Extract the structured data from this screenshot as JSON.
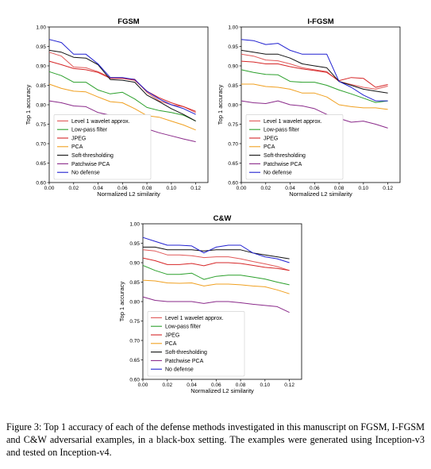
{
  "chart_data": [
    {
      "type": "line",
      "title": "FGSM",
      "xlabel": "Normalized L2 similarity",
      "ylabel": "Top 1 accuracy",
      "xlim": [
        0,
        0.13
      ],
      "ylim": [
        0.6,
        1.0
      ],
      "xticks": [
        "0.00",
        "0.02",
        "0.04",
        "0.06",
        "0.08",
        "0.10",
        "0.12"
      ],
      "yticks": [
        "0.60",
        "0.65",
        "0.70",
        "0.75",
        "0.80",
        "0.85",
        "0.90",
        "0.95",
        "1.00"
      ],
      "legend_position": "bottom-left",
      "series": [
        {
          "name": "Level 1 wavelet approx.",
          "color": "#e05858",
          "x": [
            0,
            0.01,
            0.02,
            0.03,
            0.04,
            0.05,
            0.06,
            0.07,
            0.08,
            0.09,
            0.1,
            0.11,
            0.12
          ],
          "y": [
            0.935,
            0.925,
            0.897,
            0.895,
            0.885,
            0.87,
            0.868,
            0.866,
            0.832,
            0.81,
            0.8,
            0.795,
            0.78
          ]
        },
        {
          "name": "Low-pass filter",
          "color": "#2ca02c",
          "x": [
            0,
            0.01,
            0.02,
            0.03,
            0.04,
            0.05,
            0.06,
            0.07,
            0.08,
            0.09,
            0.1,
            0.11,
            0.12
          ],
          "y": [
            0.885,
            0.875,
            0.858,
            0.858,
            0.838,
            0.828,
            0.832,
            0.815,
            0.793,
            0.785,
            0.78,
            0.773,
            0.758
          ]
        },
        {
          "name": "JPEG",
          "color": "#d62728",
          "x": [
            0,
            0.01,
            0.02,
            0.03,
            0.04,
            0.05,
            0.06,
            0.07,
            0.08,
            0.09,
            0.1,
            0.11,
            0.12
          ],
          "y": [
            0.912,
            0.903,
            0.893,
            0.89,
            0.883,
            0.868,
            0.868,
            0.863,
            0.835,
            0.818,
            0.805,
            0.795,
            0.783
          ]
        },
        {
          "name": "PCA",
          "color": "#f0a020",
          "x": [
            0,
            0.01,
            0.02,
            0.03,
            0.04,
            0.05,
            0.06,
            0.07,
            0.08,
            0.09,
            0.1,
            0.11,
            0.12
          ],
          "y": [
            0.853,
            0.842,
            0.835,
            0.833,
            0.82,
            0.808,
            0.805,
            0.79,
            0.772,
            0.768,
            0.758,
            0.748,
            0.735
          ]
        },
        {
          "name": "Soft-thresholding",
          "color": "#111111",
          "x": [
            0,
            0.01,
            0.02,
            0.03,
            0.04,
            0.05,
            0.06,
            0.07,
            0.08,
            0.09,
            0.1,
            0.11,
            0.12
          ],
          "y": [
            0.94,
            0.935,
            0.922,
            0.92,
            0.903,
            0.865,
            0.863,
            0.858,
            0.825,
            0.808,
            0.79,
            0.775,
            0.758
          ]
        },
        {
          "name": "Patchwise PCA",
          "color": "#8a2a8a",
          "x": [
            0,
            0.01,
            0.02,
            0.03,
            0.04,
            0.05,
            0.06,
            0.07,
            0.08,
            0.09,
            0.1,
            0.11,
            0.12
          ],
          "y": [
            0.81,
            0.805,
            0.797,
            0.795,
            0.78,
            0.773,
            0.77,
            0.763,
            0.738,
            0.728,
            0.72,
            0.712,
            0.705
          ]
        },
        {
          "name": "No defense",
          "color": "#2020d0",
          "x": [
            0,
            0.01,
            0.02,
            0.03,
            0.04,
            0.05,
            0.06,
            0.07,
            0.08,
            0.09,
            0.1,
            0.11,
            0.12
          ],
          "y": [
            0.968,
            0.96,
            0.93,
            0.93,
            0.905,
            0.87,
            0.87,
            0.865,
            0.835,
            0.815,
            0.8,
            0.79,
            0.775
          ]
        }
      ]
    },
    {
      "type": "line",
      "title": "I-FGSM",
      "xlabel": "Normalized L2 similarity",
      "ylabel": "Top 1 accuracy",
      "xlim": [
        0,
        0.13
      ],
      "ylim": [
        0.6,
        1.0
      ],
      "xticks": [
        "0.00",
        "0.02",
        "0.04",
        "0.06",
        "0.08",
        "0.10",
        "0.12"
      ],
      "yticks": [
        "0.60",
        "0.65",
        "0.70",
        "0.75",
        "0.80",
        "0.85",
        "0.90",
        "0.95",
        "1.00"
      ],
      "legend_position": "bottom-left",
      "series": [
        {
          "name": "Level 1 wavelet approx.",
          "color": "#e05858",
          "x": [
            0,
            0.01,
            0.02,
            0.03,
            0.04,
            0.05,
            0.06,
            0.07,
            0.08,
            0.09,
            0.1,
            0.11,
            0.12
          ],
          "y": [
            0.93,
            0.925,
            0.915,
            0.913,
            0.905,
            0.895,
            0.89,
            0.885,
            0.86,
            0.852,
            0.845,
            0.84,
            0.848
          ]
        },
        {
          "name": "Low-pass filter",
          "color": "#2ca02c",
          "x": [
            0,
            0.01,
            0.02,
            0.03,
            0.04,
            0.05,
            0.06,
            0.07,
            0.08,
            0.09,
            0.1,
            0.11,
            0.12
          ],
          "y": [
            0.89,
            0.883,
            0.878,
            0.877,
            0.86,
            0.858,
            0.858,
            0.85,
            0.838,
            0.828,
            0.817,
            0.806,
            0.81
          ]
        },
        {
          "name": "JPEG",
          "color": "#d62728",
          "x": [
            0,
            0.01,
            0.02,
            0.03,
            0.04,
            0.05,
            0.06,
            0.07,
            0.08,
            0.09,
            0.1,
            0.11,
            0.12
          ],
          "y": [
            0.912,
            0.91,
            0.905,
            0.905,
            0.898,
            0.892,
            0.888,
            0.883,
            0.862,
            0.87,
            0.868,
            0.845,
            0.852
          ]
        },
        {
          "name": "PCA",
          "color": "#f0a020",
          "x": [
            0,
            0.01,
            0.02,
            0.03,
            0.04,
            0.05,
            0.06,
            0.07,
            0.08,
            0.09,
            0.1,
            0.11,
            0.12
          ],
          "y": [
            0.853,
            0.853,
            0.847,
            0.845,
            0.84,
            0.83,
            0.83,
            0.82,
            0.8,
            0.795,
            0.792,
            0.792,
            0.788
          ]
        },
        {
          "name": "Soft-thresholding",
          "color": "#111111",
          "x": [
            0,
            0.01,
            0.02,
            0.03,
            0.04,
            0.05,
            0.06,
            0.07,
            0.08,
            0.09,
            0.1,
            0.11,
            0.12
          ],
          "y": [
            0.94,
            0.935,
            0.93,
            0.93,
            0.92,
            0.905,
            0.9,
            0.895,
            0.86,
            0.85,
            0.84,
            0.835,
            0.83
          ]
        },
        {
          "name": "Patchwise PCA",
          "color": "#8a2a8a",
          "x": [
            0,
            0.01,
            0.02,
            0.03,
            0.04,
            0.05,
            0.06,
            0.07,
            0.08,
            0.09,
            0.1,
            0.11,
            0.12
          ],
          "y": [
            0.81,
            0.805,
            0.803,
            0.81,
            0.8,
            0.797,
            0.79,
            0.775,
            0.765,
            0.755,
            0.758,
            0.75,
            0.74
          ]
        },
        {
          "name": "No defense",
          "color": "#2020d0",
          "x": [
            0,
            0.01,
            0.02,
            0.03,
            0.04,
            0.05,
            0.06,
            0.07,
            0.08,
            0.09,
            0.1,
            0.11,
            0.12
          ],
          "y": [
            0.968,
            0.965,
            0.955,
            0.958,
            0.94,
            0.93,
            0.93,
            0.93,
            0.86,
            0.845,
            0.825,
            0.81,
            0.81
          ]
        }
      ]
    },
    {
      "type": "line",
      "title": "C&W",
      "xlabel": "Normalized L2 similarity",
      "ylabel": "Top 1 accuracy",
      "xlim": [
        0,
        0.13
      ],
      "ylim": [
        0.6,
        1.0
      ],
      "xticks": [
        "0.00",
        "0.02",
        "0.04",
        "0.06",
        "0.08",
        "0.10",
        "0.12"
      ],
      "yticks": [
        "0.60",
        "0.65",
        "0.70",
        "0.75",
        "0.80",
        "0.85",
        "0.90",
        "0.95",
        "1.00"
      ],
      "legend_position": "bottom-left",
      "series": [
        {
          "name": "Level 1 wavelet approx.",
          "color": "#e05858",
          "x": [
            0,
            0.01,
            0.02,
            0.03,
            0.04,
            0.05,
            0.06,
            0.07,
            0.08,
            0.09,
            0.1,
            0.11,
            0.12
          ],
          "y": [
            0.933,
            0.93,
            0.92,
            0.92,
            0.918,
            0.913,
            0.915,
            0.915,
            0.91,
            0.903,
            0.897,
            0.89,
            0.88
          ]
        },
        {
          "name": "Low-pass filter",
          "color": "#2ca02c",
          "x": [
            0,
            0.01,
            0.02,
            0.03,
            0.04,
            0.05,
            0.06,
            0.07,
            0.08,
            0.09,
            0.1,
            0.11,
            0.12
          ],
          "y": [
            0.893,
            0.88,
            0.87,
            0.87,
            0.873,
            0.857,
            0.865,
            0.868,
            0.868,
            0.863,
            0.858,
            0.85,
            0.843
          ]
        },
        {
          "name": "JPEG",
          "color": "#d62728",
          "x": [
            0,
            0.01,
            0.02,
            0.03,
            0.04,
            0.05,
            0.06,
            0.07,
            0.08,
            0.09,
            0.1,
            0.11,
            0.12
          ],
          "y": [
            0.912,
            0.905,
            0.895,
            0.895,
            0.898,
            0.892,
            0.9,
            0.9,
            0.898,
            0.893,
            0.888,
            0.885,
            0.88
          ]
        },
        {
          "name": "PCA",
          "color": "#f0a020",
          "x": [
            0,
            0.01,
            0.02,
            0.03,
            0.04,
            0.05,
            0.06,
            0.07,
            0.08,
            0.09,
            0.1,
            0.11,
            0.12
          ],
          "y": [
            0.855,
            0.853,
            0.848,
            0.847,
            0.848,
            0.84,
            0.845,
            0.845,
            0.843,
            0.84,
            0.838,
            0.83,
            0.82
          ]
        },
        {
          "name": "Soft-thresholding",
          "color": "#111111",
          "x": [
            0,
            0.01,
            0.02,
            0.03,
            0.04,
            0.05,
            0.06,
            0.07,
            0.08,
            0.09,
            0.1,
            0.11,
            0.12
          ],
          "y": [
            0.94,
            0.94,
            0.933,
            0.933,
            0.933,
            0.93,
            0.933,
            0.933,
            0.933,
            0.925,
            0.92,
            0.915,
            0.91
          ]
        },
        {
          "name": "Patchwise PCA",
          "color": "#8a2a8a",
          "x": [
            0,
            0.01,
            0.02,
            0.03,
            0.04,
            0.05,
            0.06,
            0.07,
            0.08,
            0.09,
            0.1,
            0.11,
            0.12
          ],
          "y": [
            0.812,
            0.803,
            0.8,
            0.8,
            0.8,
            0.795,
            0.8,
            0.8,
            0.797,
            0.793,
            0.79,
            0.787,
            0.772
          ]
        },
        {
          "name": "No defense",
          "color": "#2020d0",
          "x": [
            0,
            0.01,
            0.02,
            0.03,
            0.04,
            0.05,
            0.06,
            0.07,
            0.08,
            0.09,
            0.1,
            0.11,
            0.12
          ],
          "y": [
            0.965,
            0.955,
            0.945,
            0.945,
            0.943,
            0.925,
            0.94,
            0.945,
            0.945,
            0.925,
            0.915,
            0.91,
            0.9
          ]
        }
      ]
    }
  ],
  "caption": "Figure 3: Top 1 accuracy of each of the defense methods investigated in this manuscript on FGSM, I-FGSM and C&W adversarial examples, in a black-box setting. The examples were generated using Inception-v3 and tested on Inception-v4."
}
